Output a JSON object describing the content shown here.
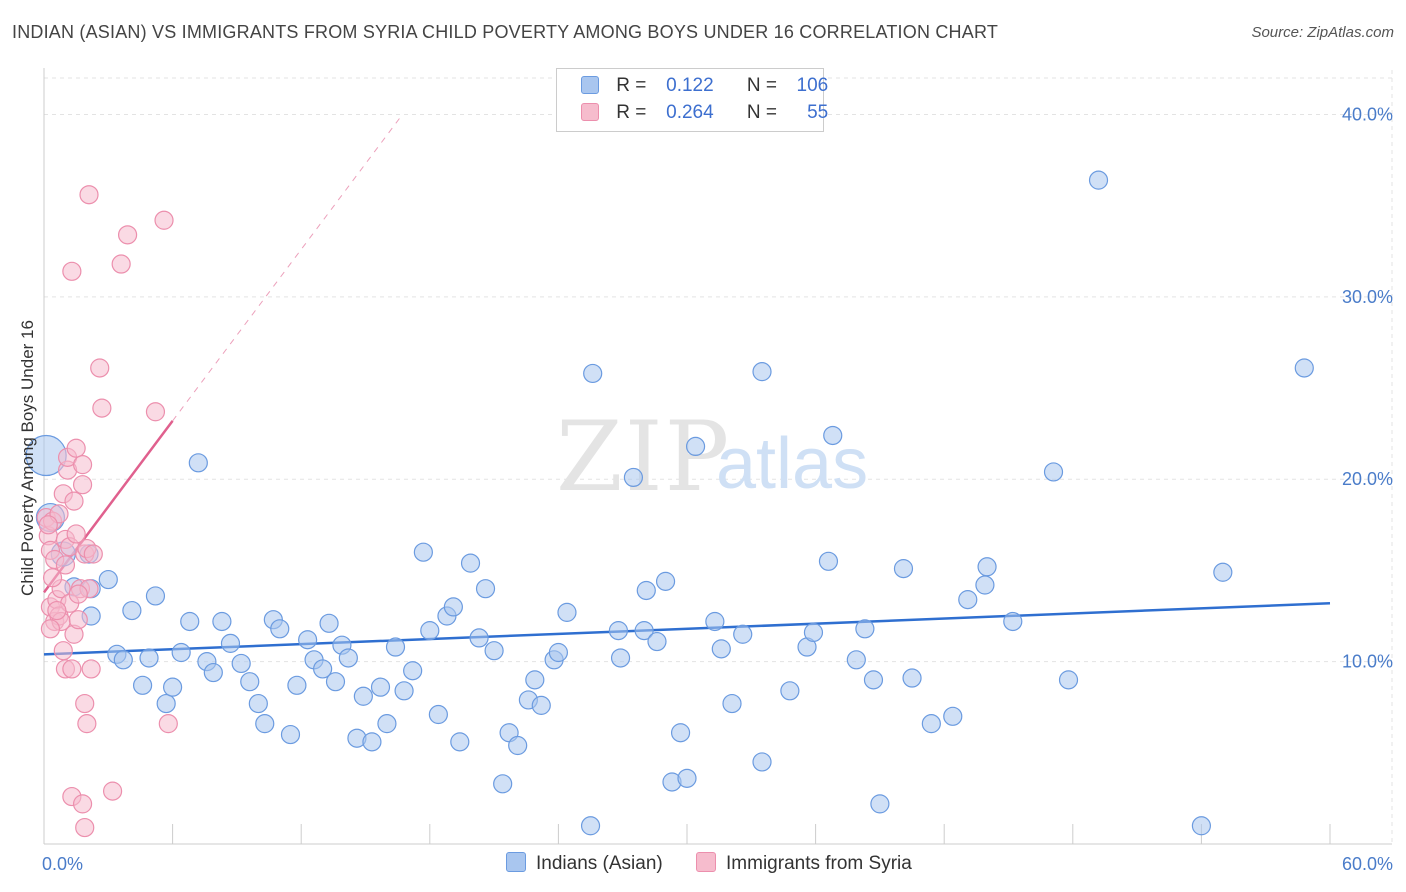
{
  "title": "INDIAN (ASIAN) VS IMMIGRANTS FROM SYRIA CHILD POVERTY AMONG BOYS UNDER 16 CORRELATION CHART",
  "source": "Source: ZipAtlas.com",
  "watermark": {
    "zip": "ZIP",
    "atlas": "atlas"
  },
  "legend": {
    "rows": [
      {
        "r_label": "R =",
        "r_value": "0.122",
        "n_label": "N =",
        "n_value": "106"
      },
      {
        "r_label": "R =",
        "r_value": "0.264",
        "n_label": "N =",
        "n_value": "55"
      }
    ]
  },
  "bottom_legend": {
    "series1": "Indians (Asian)",
    "series2": "Immigrants from Syria"
  },
  "colors": {
    "blue_fill": "#a9c6ef",
    "blue_stroke": "#6b9be0",
    "blue_line": "#2f6fd0",
    "pink_fill": "#f6bccd",
    "pink_stroke": "#ec8fad",
    "pink_line": "#e0608e",
    "tick_text": "#4a7cc9",
    "grid": "#e3e3e3"
  },
  "chart_data": {
    "type": "scatter",
    "title": "INDIAN (ASIAN) VS IMMIGRANTS FROM SYRIA CHILD POVERTY AMONG BOYS UNDER 16 CORRELATION CHART",
    "xlabel": "",
    "ylabel": "Child Poverty Among Boys Under 16",
    "xlim": [
      0,
      60
    ],
    "ylim": [
      0,
      42
    ],
    "x_tick_labels": [
      "0.0%",
      "60.0%"
    ],
    "y_ticks": [
      10,
      20,
      30,
      40
    ],
    "y_tick_labels": [
      "10.0%",
      "20.0%",
      "30.0%",
      "40.0%"
    ],
    "grid": true,
    "legend_position": "top-center",
    "series": [
      {
        "name": "Indians (Asian)",
        "color": "#a9c6ef",
        "trend": {
          "x": [
            0,
            60
          ],
          "y": [
            10.4,
            13.2
          ]
        },
        "points": [
          {
            "x": 0.1,
            "y": 21.3
          },
          {
            "x": 0.3,
            "y": 17.9
          },
          {
            "x": 0.9,
            "y": 15.9
          },
          {
            "x": 1.4,
            "y": 14.1
          },
          {
            "x": 2.1,
            "y": 15.9
          },
          {
            "x": 2.2,
            "y": 14.0
          },
          {
            "x": 2.2,
            "y": 12.5
          },
          {
            "x": 3.0,
            "y": 14.5
          },
          {
            "x": 3.4,
            "y": 10.4
          },
          {
            "x": 3.7,
            "y": 10.1
          },
          {
            "x": 4.1,
            "y": 12.8
          },
          {
            "x": 4.6,
            "y": 8.7
          },
          {
            "x": 4.9,
            "y": 10.2
          },
          {
            "x": 5.2,
            "y": 13.6
          },
          {
            "x": 5.7,
            "y": 7.7
          },
          {
            "x": 6.0,
            "y": 8.6
          },
          {
            "x": 6.4,
            "y": 10.5
          },
          {
            "x": 6.8,
            "y": 12.2
          },
          {
            "x": 7.2,
            "y": 20.9
          },
          {
            "x": 7.6,
            "y": 10.0
          },
          {
            "x": 7.9,
            "y": 9.4
          },
          {
            "x": 8.3,
            "y": 12.2
          },
          {
            "x": 8.7,
            "y": 11.0
          },
          {
            "x": 9.2,
            "y": 9.9
          },
          {
            "x": 9.6,
            "y": 8.9
          },
          {
            "x": 10.0,
            "y": 7.7
          },
          {
            "x": 10.3,
            "y": 6.6
          },
          {
            "x": 10.7,
            "y": 12.3
          },
          {
            "x": 11.0,
            "y": 11.8
          },
          {
            "x": 11.5,
            "y": 6.0
          },
          {
            "x": 11.8,
            "y": 8.7
          },
          {
            "x": 12.3,
            "y": 11.2
          },
          {
            "x": 12.6,
            "y": 10.1
          },
          {
            "x": 13.0,
            "y": 9.6
          },
          {
            "x": 13.3,
            "y": 12.1
          },
          {
            "x": 13.6,
            "y": 8.9
          },
          {
            "x": 13.9,
            "y": 10.9
          },
          {
            "x": 14.2,
            "y": 10.2
          },
          {
            "x": 14.6,
            "y": 5.8
          },
          {
            "x": 14.9,
            "y": 8.1
          },
          {
            "x": 15.3,
            "y": 5.6
          },
          {
            "x": 15.7,
            "y": 8.6
          },
          {
            "x": 16.0,
            "y": 6.6
          },
          {
            "x": 16.4,
            "y": 10.8
          },
          {
            "x": 16.8,
            "y": 8.4
          },
          {
            "x": 17.2,
            "y": 9.5
          },
          {
            "x": 17.7,
            "y": 16.0
          },
          {
            "x": 18.0,
            "y": 11.7
          },
          {
            "x": 18.4,
            "y": 7.1
          },
          {
            "x": 18.8,
            "y": 12.5
          },
          {
            "x": 19.1,
            "y": 13.0
          },
          {
            "x": 19.4,
            "y": 5.6
          },
          {
            "x": 19.9,
            "y": 15.4
          },
          {
            "x": 20.3,
            "y": 11.3
          },
          {
            "x": 20.6,
            "y": 14.0
          },
          {
            "x": 21.0,
            "y": 10.6
          },
          {
            "x": 21.4,
            "y": 3.3
          },
          {
            "x": 21.7,
            "y": 6.1
          },
          {
            "x": 22.1,
            "y": 5.4
          },
          {
            "x": 22.6,
            "y": 7.9
          },
          {
            "x": 22.9,
            "y": 9.0
          },
          {
            "x": 23.2,
            "y": 7.6
          },
          {
            "x": 23.8,
            "y": 10.1
          },
          {
            "x": 24.0,
            "y": 10.5
          },
          {
            "x": 24.4,
            "y": 12.7
          },
          {
            "x": 25.6,
            "y": 25.8
          },
          {
            "x": 25.5,
            "y": 1.0
          },
          {
            "x": 26.8,
            "y": 11.7
          },
          {
            "x": 26.9,
            "y": 10.2
          },
          {
            "x": 27.5,
            "y": 20.1
          },
          {
            "x": 28.0,
            "y": 11.7
          },
          {
            "x": 28.1,
            "y": 13.9
          },
          {
            "x": 28.6,
            "y": 11.1
          },
          {
            "x": 29.0,
            "y": 14.4
          },
          {
            "x": 29.3,
            "y": 3.4
          },
          {
            "x": 29.7,
            "y": 6.1
          },
          {
            "x": 30.0,
            "y": 3.6
          },
          {
            "x": 30.4,
            "y": 21.8
          },
          {
            "x": 31.3,
            "y": 12.2
          },
          {
            "x": 31.6,
            "y": 10.7
          },
          {
            "x": 32.1,
            "y": 7.7
          },
          {
            "x": 32.6,
            "y": 11.5
          },
          {
            "x": 33.5,
            "y": 4.5
          },
          {
            "x": 33.5,
            "y": 25.9
          },
          {
            "x": 34.8,
            "y": 8.4
          },
          {
            "x": 35.6,
            "y": 10.8
          },
          {
            "x": 35.9,
            "y": 11.6
          },
          {
            "x": 36.6,
            "y": 15.5
          },
          {
            "x": 36.8,
            "y": 22.4
          },
          {
            "x": 37.9,
            "y": 10.1
          },
          {
            "x": 38.3,
            "y": 11.8
          },
          {
            "x": 38.7,
            "y": 9.0
          },
          {
            "x": 39.0,
            "y": 2.2
          },
          {
            "x": 40.1,
            "y": 15.1
          },
          {
            "x": 40.5,
            "y": 9.1
          },
          {
            "x": 41.4,
            "y": 6.6
          },
          {
            "x": 42.4,
            "y": 7.0
          },
          {
            "x": 43.1,
            "y": 13.4
          },
          {
            "x": 43.9,
            "y": 14.2
          },
          {
            "x": 44.0,
            "y": 15.2
          },
          {
            "x": 45.2,
            "y": 12.2
          },
          {
            "x": 47.1,
            "y": 20.4
          },
          {
            "x": 47.8,
            "y": 9.0
          },
          {
            "x": 49.2,
            "y": 36.4
          },
          {
            "x": 54.0,
            "y": 1.0
          },
          {
            "x": 55.0,
            "y": 14.9
          },
          {
            "x": 58.8,
            "y": 26.1
          }
        ]
      },
      {
        "name": "Immigrants from Syria",
        "color": "#f6bccd",
        "trend": {
          "x": [
            0,
            6.0
          ],
          "y": [
            13.8,
            23.2
          ]
        },
        "points": [
          {
            "x": 0.1,
            "y": 17.9
          },
          {
            "x": 0.2,
            "y": 16.9
          },
          {
            "x": 0.3,
            "y": 16.1
          },
          {
            "x": 0.3,
            "y": 13.0
          },
          {
            "x": 0.4,
            "y": 17.7
          },
          {
            "x": 0.5,
            "y": 15.6
          },
          {
            "x": 0.5,
            "y": 12.2
          },
          {
            "x": 0.6,
            "y": 13.4
          },
          {
            "x": 0.7,
            "y": 18.1
          },
          {
            "x": 0.7,
            "y": 12.5
          },
          {
            "x": 0.8,
            "y": 14.0
          },
          {
            "x": 0.8,
            "y": 12.2
          },
          {
            "x": 0.9,
            "y": 19.2
          },
          {
            "x": 0.9,
            "y": 10.6
          },
          {
            "x": 1.0,
            "y": 16.7
          },
          {
            "x": 1.0,
            "y": 9.6
          },
          {
            "x": 1.1,
            "y": 20.5
          },
          {
            "x": 1.1,
            "y": 21.2
          },
          {
            "x": 1.2,
            "y": 16.3
          },
          {
            "x": 1.2,
            "y": 13.2
          },
          {
            "x": 1.3,
            "y": 31.4
          },
          {
            "x": 1.3,
            "y": 9.6
          },
          {
            "x": 1.3,
            "y": 2.6
          },
          {
            "x": 1.4,
            "y": 18.8
          },
          {
            "x": 1.4,
            "y": 11.5
          },
          {
            "x": 1.5,
            "y": 17.0
          },
          {
            "x": 1.5,
            "y": 21.7
          },
          {
            "x": 1.6,
            "y": 12.3
          },
          {
            "x": 1.7,
            "y": 14.0
          },
          {
            "x": 1.8,
            "y": 19.7
          },
          {
            "x": 1.8,
            "y": 20.8
          },
          {
            "x": 1.8,
            "y": 2.2
          },
          {
            "x": 1.9,
            "y": 15.9
          },
          {
            "x": 1.9,
            "y": 7.7
          },
          {
            "x": 1.9,
            "y": 0.9
          },
          {
            "x": 2.0,
            "y": 6.6
          },
          {
            "x": 2.0,
            "y": 16.2
          },
          {
            "x": 2.1,
            "y": 35.6
          },
          {
            "x": 2.1,
            "y": 14.0
          },
          {
            "x": 2.2,
            "y": 9.6
          },
          {
            "x": 2.3,
            "y": 15.9
          },
          {
            "x": 2.6,
            "y": 26.1
          },
          {
            "x": 2.7,
            "y": 23.9
          },
          {
            "x": 3.2,
            "y": 2.9
          },
          {
            "x": 3.6,
            "y": 31.8
          },
          {
            "x": 3.9,
            "y": 33.4
          },
          {
            "x": 5.2,
            "y": 23.7
          },
          {
            "x": 5.6,
            "y": 34.2
          },
          {
            "x": 5.8,
            "y": 6.6
          },
          {
            "x": 0.2,
            "y": 17.5
          },
          {
            "x": 0.4,
            "y": 14.6
          },
          {
            "x": 0.6,
            "y": 12.8
          },
          {
            "x": 1.0,
            "y": 15.3
          },
          {
            "x": 1.6,
            "y": 13.7
          },
          {
            "x": 0.3,
            "y": 11.8
          }
        ]
      }
    ]
  }
}
